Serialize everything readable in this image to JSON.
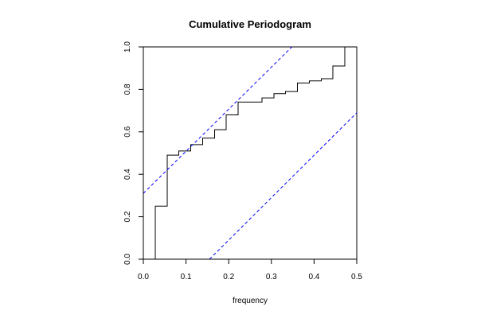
{
  "chart_data": {
    "type": "line",
    "title": "Cumulative Periodogram",
    "xlabel": "frequency",
    "ylabel": "",
    "xlim": [
      0.0,
      0.5
    ],
    "ylim": [
      0.0,
      1.0
    ],
    "xticks": [
      "0.0",
      "0.1",
      "0.2",
      "0.3",
      "0.4",
      "0.5"
    ],
    "yticks": [
      "0.0",
      "0.2",
      "0.4",
      "0.6",
      "0.8",
      "1.0"
    ],
    "grid": false,
    "series": [
      {
        "kind": "step",
        "color": "#000000",
        "x": [
          0.028,
          0.056,
          0.083,
          0.111,
          0.139,
          0.167,
          0.194,
          0.222,
          0.278,
          0.306,
          0.333,
          0.361,
          0.389,
          0.417,
          0.444,
          0.472,
          0.5
        ],
        "y": [
          0.25,
          0.49,
          0.51,
          0.54,
          0.57,
          0.61,
          0.68,
          0.74,
          0.76,
          0.78,
          0.79,
          0.83,
          0.84,
          0.85,
          0.91,
          1.0,
          1.0
        ]
      },
      {
        "kind": "dashed",
        "color": "#0000ff",
        "x": [
          0.0,
          0.348
        ],
        "y": [
          0.31,
          1.0
        ]
      },
      {
        "kind": "dashed",
        "color": "#0000ff",
        "x": [
          0.155,
          0.5
        ],
        "y": [
          0.0,
          0.69
        ]
      }
    ]
  }
}
